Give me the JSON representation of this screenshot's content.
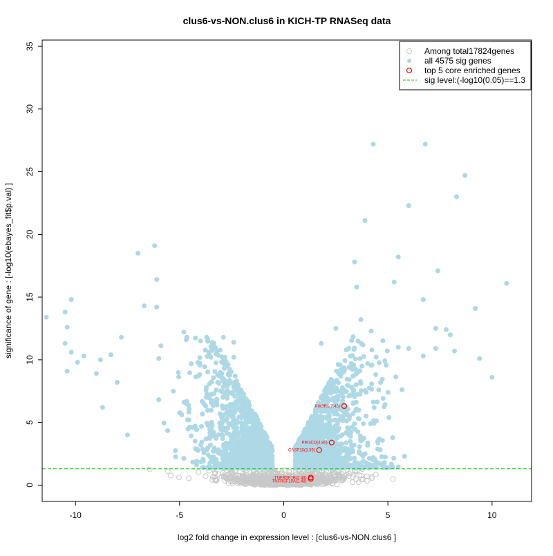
{
  "chart_data": {
    "type": "scatter",
    "title": "clus6-vs-NON.clus6 in KICH-TP RNASeq data",
    "xlabel": "log2 fold change in expression level : [clus6-vs-NON.clus6 ]",
    "ylabel": "significance of gene : [-log10(ebayes_fit$p.val) ]",
    "xlim": [
      -11.6,
      11.9
    ],
    "ylim": [
      -1.3,
      35.5
    ],
    "xticks": [
      -10,
      -5,
      0,
      5,
      10
    ],
    "yticks": [
      0,
      5,
      10,
      15,
      20,
      25,
      30,
      35
    ],
    "sig_threshold": 1.3,
    "legend": {
      "position": "top-right",
      "entries": [
        {
          "label": "Among total17824genes",
          "kind": "open-circle",
          "color": "#c8c8c8"
        },
        {
          "label": "all 4575 sig genes",
          "kind": "filled-circle",
          "color": "#add8e6"
        },
        {
          "label": "top 5 core enriched genes",
          "kind": "open-circle",
          "color": "#ff0000"
        },
        {
          "label": "sig level:(-log10(0.05)==1.3",
          "kind": "dashed-line",
          "color": "#00cc00"
        }
      ]
    },
    "colors": {
      "all": "#c8c8c8",
      "sig": "#add8e6",
      "core": "#ff0000",
      "threshold": "#00cc00"
    },
    "sig_points": [
      [
        -11.4,
        13.4
      ],
      [
        -10.5,
        13.8
      ],
      [
        -10.4,
        12.6
      ],
      [
        -10.5,
        11.3
      ],
      [
        -10.2,
        14.8
      ],
      [
        -10.2,
        10.6
      ],
      [
        -10.4,
        9.1
      ],
      [
        -9.9,
        9.8
      ],
      [
        -9.6,
        10.3
      ],
      [
        -9.0,
        8.9
      ],
      [
        -8.8,
        10.0
      ],
      [
        -8.7,
        6.2
      ],
      [
        -8.3,
        10.4
      ],
      [
        -8.0,
        8.2
      ],
      [
        -7.8,
        11.8
      ],
      [
        -7.5,
        4.0
      ],
      [
        -7.0,
        18.5
      ],
      [
        -6.7,
        14.3
      ],
      [
        -6.2,
        19.1
      ],
      [
        -6.1,
        16.4
      ],
      [
        -6.1,
        14.2
      ],
      [
        -6.0,
        10.1
      ],
      [
        -4.8,
        12.2
      ],
      [
        -4.0,
        11.5
      ],
      [
        -3.7,
        11.8
      ],
      [
        -3.6,
        10.6
      ],
      [
        -3.5,
        10.2
      ],
      [
        -2.9,
        11.8
      ],
      [
        -2.4,
        10.2
      ],
      [
        -2.4,
        11.4
      ],
      [
        4.3,
        27.2
      ],
      [
        6.8,
        27.2
      ],
      [
        8.7,
        24.7
      ],
      [
        6.0,
        22.3
      ],
      [
        8.3,
        23.0
      ],
      [
        3.9,
        21.1
      ],
      [
        3.4,
        17.8
      ],
      [
        5.5,
        18.2
      ],
      [
        7.4,
        17.1
      ],
      [
        10.7,
        16.1
      ],
      [
        5.3,
        16.2
      ],
      [
        3.5,
        15.8
      ],
      [
        6.7,
        14.8
      ],
      [
        9.2,
        14.1
      ],
      [
        3.7,
        13.2
      ],
      [
        4.2,
        12.3
      ],
      [
        7.3,
        12.5
      ],
      [
        7.8,
        12.4
      ],
      [
        9.4,
        10.1
      ],
      [
        10.0,
        8.6
      ],
      [
        8.0,
        12.0
      ],
      [
        2.5,
        12.5
      ],
      [
        1.8,
        11.3
      ],
      [
        6.0,
        10.9
      ],
      [
        8.2,
        10.7
      ],
      [
        7.3,
        10.9
      ],
      [
        6.7,
        10.3
      ],
      [
        5.5,
        11.0
      ],
      [
        2.8,
        9.0
      ],
      [
        3.2,
        10.3
      ]
    ],
    "core_genes": [
      {
        "label": "PIK3R1(7.43)",
        "x": 2.9,
        "y": 6.3
      },
      {
        "label": "PIK3CD(4.80)",
        "x": 2.3,
        "y": 3.4
      },
      {
        "label": "CASP10(3.39)",
        "x": 1.7,
        "y": 2.8
      },
      {
        "label": "TNFRSF1B(2.48)",
        "x": 1.3,
        "y": 0.6
      },
      {
        "label": "TNFRSF10A(2.48)",
        "x": 1.3,
        "y": 0.5
      }
    ]
  }
}
